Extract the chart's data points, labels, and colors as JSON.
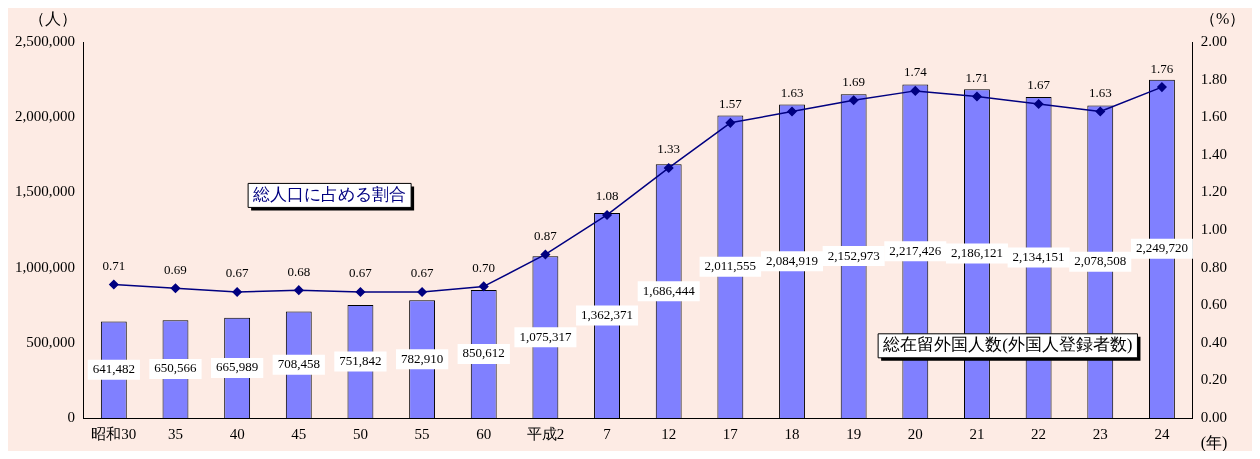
{
  "chart_data": {
    "type": "bar",
    "categories": [
      "昭和30",
      "35",
      "40",
      "45",
      "50",
      "55",
      "60",
      "平成2",
      "7",
      "12",
      "17",
      "18",
      "19",
      "20",
      "21",
      "22",
      "23",
      "24"
    ],
    "series": [
      {
        "name": "総在留外国人数(外国人登録者数)",
        "color": "#8080ff",
        "values": [
          641482,
          650566,
          665989,
          708458,
          751842,
          782910,
          850612,
          1075317,
          1362371,
          1686444,
          2011555,
          2084919,
          2152973,
          2217426,
          2186121,
          2134151,
          2078508,
          2249720
        ],
        "value_labels": [
          "641,482",
          "650,566",
          "665,989",
          "708,458",
          "751,842",
          "782,910",
          "850,612",
          "1,075,317",
          "1,362,371",
          "1,686,444",
          "2,011,555",
          "2,084,919",
          "2,152,973",
          "2,217,426",
          "2,186,121",
          "2,134,151",
          "2,078,508",
          "2,249,720"
        ]
      },
      {
        "name": "総人口に占める割合",
        "type": "line",
        "axis": "y2",
        "color": "#000080",
        "values": [
          0.71,
          0.69,
          0.67,
          0.68,
          0.67,
          0.67,
          0.7,
          0.87,
          1.08,
          1.33,
          1.57,
          1.63,
          1.69,
          1.74,
          1.71,
          1.67,
          1.63,
          1.76
        ],
        "value_labels": [
          "0.71",
          "0.69",
          "0.67",
          "0.68",
          "0.67",
          "0.67",
          "0.70",
          "0.87",
          "1.08",
          "1.33",
          "1.57",
          "1.63",
          "1.69",
          "1.74",
          "1.71",
          "1.67",
          "1.63",
          "1.76"
        ]
      }
    ],
    "ylabel": "（人）",
    "y2label": "（%）",
    "xlabel": "(年)",
    "ylim": [
      0,
      2500000
    ],
    "yticks": [
      {
        "value": 0,
        "label": "0"
      },
      {
        "value": 500000,
        "label": "500,000"
      },
      {
        "value": 1000000,
        "label": "1,000,000"
      },
      {
        "value": 1500000,
        "label": "1,500,000"
      },
      {
        "value": 2000000,
        "label": "2,000,000"
      },
      {
        "value": 2500000,
        "label": "2,500,000"
      }
    ],
    "y2lim": [
      0,
      2
    ],
    "y2ticks": [
      {
        "value": 0,
        "label": "0.00"
      },
      {
        "value": 0.2,
        "label": "0.20"
      },
      {
        "value": 0.4,
        "label": "0.40"
      },
      {
        "value": 0.6,
        "label": "0.60"
      },
      {
        "value": 0.8,
        "label": "0.80"
      },
      {
        "value": 1,
        "label": "1.00"
      },
      {
        "value": 1.2,
        "label": "1.20"
      },
      {
        "value": 1.4,
        "label": "1.40"
      },
      {
        "value": 1.6,
        "label": "1.60"
      },
      {
        "value": 1.8,
        "label": "1.80"
      },
      {
        "value": 2,
        "label": "2.00"
      }
    ],
    "grid": false,
    "legend": false,
    "marker": "diamond",
    "line_style": "solid"
  }
}
